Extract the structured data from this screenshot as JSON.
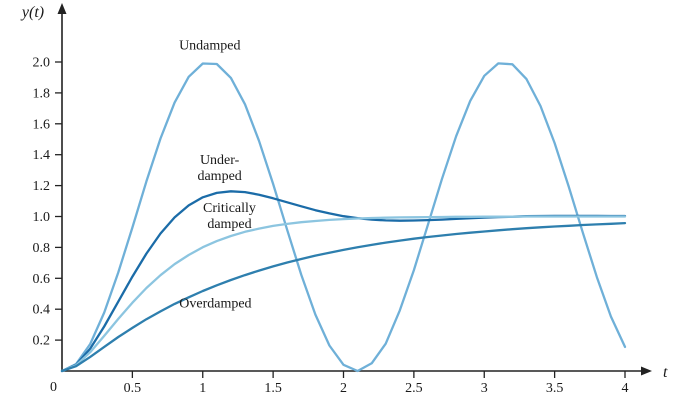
{
  "figure": {
    "origin_label": "0"
  },
  "chart_data": {
    "type": "line",
    "xlabel": "t",
    "ylabel": "y(t)",
    "xlim": [
      0,
      4.15
    ],
    "ylim": [
      0,
      2.35
    ],
    "grid": false,
    "legend_position": "none",
    "x_ticks": [
      0.5,
      1,
      1.5,
      2,
      2.5,
      3,
      3.5,
      4
    ],
    "x_tick_labels": [
      "0.5",
      "1",
      "1.5",
      "2",
      "2.5",
      "3",
      "3.5",
      "4"
    ],
    "y_ticks": [
      0.2,
      0.4,
      0.6,
      0.8,
      1.0,
      1.2,
      1.4,
      1.6,
      1.8,
      2.0
    ],
    "y_tick_labels": [
      "0.2",
      "0.4",
      "0.6",
      "0.8",
      "1.0",
      "1.2",
      "1.4",
      "1.6",
      "1.8",
      "2.0"
    ],
    "x": [
      0,
      0.1,
      0.2,
      0.3,
      0.4,
      0.5,
      0.6,
      0.7,
      0.8,
      0.9,
      1,
      1.1,
      1.2,
      1.3,
      1.4,
      1.5,
      1.6,
      1.7,
      1.8,
      1.9,
      2,
      2.1,
      2.2,
      2.3,
      2.4,
      2.5,
      2.6,
      2.7,
      2.8,
      2.9,
      3,
      3.1,
      3.2,
      3.3,
      3.4,
      3.5,
      3.6,
      3.7,
      3.8,
      3.9,
      4
    ],
    "series": [
      {
        "name": "Undamped",
        "color": "#6fb0d8",
        "values": [
          0,
          0.045,
          0.175,
          0.378,
          0.638,
          0.929,
          1.227,
          1.505,
          1.737,
          1.904,
          1.99,
          1.987,
          1.897,
          1.726,
          1.49,
          1.211,
          0.913,
          0.622,
          0.365,
          0.165,
          0.04,
          0.0,
          0.05,
          0.177,
          0.392,
          0.653,
          0.946,
          1.244,
          1.519,
          1.748,
          1.911,
          1.991,
          1.985,
          1.889,
          1.715,
          1.476,
          1.194,
          0.896,
          0.607,
          0.353,
          0.156
        ]
      },
      {
        "name": "Underdamped",
        "color": "#1b6ca8",
        "values": [
          0,
          0.04,
          0.145,
          0.288,
          0.449,
          0.611,
          0.76,
          0.89,
          0.994,
          1.072,
          1.124,
          1.153,
          1.163,
          1.158,
          1.141,
          1.118,
          1.092,
          1.066,
          1.041,
          1.02,
          1.002,
          0.989,
          0.98,
          0.975,
          0.973,
          0.974,
          0.977,
          0.98,
          0.985,
          0.989,
          0.993,
          0.996,
          0.999,
          1.002,
          1.003,
          1.004,
          1.004,
          1.004,
          1.004,
          1.003,
          1.003
        ]
      },
      {
        "name": "Critically damped",
        "color": "#8cc5e0",
        "values": [
          0,
          0.037,
          0.122,
          0.227,
          0.337,
          0.442,
          0.537,
          0.62,
          0.692,
          0.751,
          0.801,
          0.841,
          0.874,
          0.901,
          0.922,
          0.939,
          0.952,
          0.963,
          0.971,
          0.978,
          0.983,
          0.987,
          0.99,
          0.992,
          0.994,
          0.995,
          0.996,
          0.997,
          0.998,
          0.998,
          0.999,
          0.999,
          0.999,
          1.0,
          1.0,
          1.0,
          1.0,
          1.0,
          1.0,
          1.0,
          1.0
        ]
      },
      {
        "name": "Overdamped",
        "color": "#2e7fae",
        "values": [
          0,
          0.031,
          0.091,
          0.156,
          0.22,
          0.279,
          0.335,
          0.386,
          0.434,
          0.477,
          0.518,
          0.555,
          0.589,
          0.621,
          0.65,
          0.677,
          0.702,
          0.725,
          0.747,
          0.766,
          0.784,
          0.801,
          0.816,
          0.831,
          0.844,
          0.856,
          0.867,
          0.877,
          0.887,
          0.895,
          0.903,
          0.911,
          0.918,
          0.924,
          0.93,
          0.935,
          0.94,
          0.945,
          0.949,
          0.953,
          0.957
        ]
      }
    ],
    "annotations": [
      {
        "lines": [
          "Undamped"
        ],
        "t": 1.05,
        "y": 2.08
      },
      {
        "lines": [
          "Under-",
          "damped"
        ],
        "t": 1.12,
        "y": 1.34
      },
      {
        "lines": [
          "Critically",
          "damped"
        ],
        "t": 1.19,
        "y": 1.03
      },
      {
        "lines": [
          "Overdamped"
        ],
        "t": 1.09,
        "y": 0.41
      }
    ]
  }
}
